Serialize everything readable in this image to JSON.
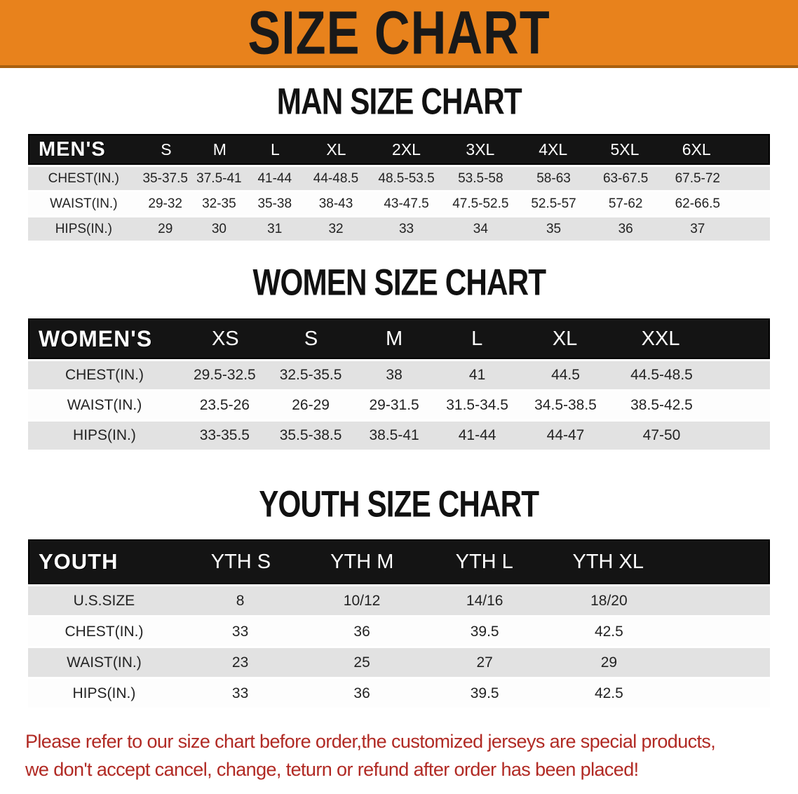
{
  "banner": {
    "title": "SIZE CHART"
  },
  "sections": [
    {
      "heading": "MAN SIZE CHART",
      "table": {
        "header_label": "MEN'S",
        "columns": [
          "S",
          "M",
          "L",
          "XL",
          "2XL",
          "3XL",
          "4XL",
          "5XL",
          "6XL"
        ],
        "rows": [
          {
            "label": "CHEST(IN.)",
            "values": [
              "35-37.5",
              "37.5-41",
              "41-44",
              "44-48.5",
              "48.5-53.5",
              "53.5-58",
              "58-63",
              "63-67.5",
              "67.5-72"
            ]
          },
          {
            "label": "WAIST(IN.)",
            "values": [
              "29-32",
              "32-35",
              "35-38",
              "38-43",
              "43-47.5",
              "47.5-52.5",
              "52.5-57",
              "57-62",
              "62-66.5"
            ]
          },
          {
            "label": "HIPS(IN.)",
            "values": [
              "29",
              "30",
              "31",
              "32",
              "33",
              "34",
              "35",
              "36",
              "37"
            ]
          }
        ]
      }
    },
    {
      "heading": "WOMEN SIZE CHART",
      "table": {
        "header_label": "WOMEN'S",
        "columns": [
          "XS",
          "S",
          "M",
          "L",
          "XL",
          "XXL"
        ],
        "rows": [
          {
            "label": "CHEST(IN.)",
            "values": [
              "29.5-32.5",
              "32.5-35.5",
              "38",
              "41",
              "44.5",
              "44.5-48.5"
            ]
          },
          {
            "label": "WAIST(IN.)",
            "values": [
              "23.5-26",
              "26-29",
              "29-31.5",
              "31.5-34.5",
              "34.5-38.5",
              "38.5-42.5"
            ]
          },
          {
            "label": "HIPS(IN.)",
            "values": [
              "33-35.5",
              "35.5-38.5",
              "38.5-41",
              "41-44",
              "44-47",
              "47-50"
            ]
          }
        ]
      }
    },
    {
      "heading": "YOUTH SIZE CHART",
      "table": {
        "header_label": "YOUTH",
        "columns": [
          "YTH S",
          "YTH M",
          "YTH L",
          "YTH XL"
        ],
        "rows": [
          {
            "label": "U.S.SIZE",
            "values": [
              "8",
              "10/12",
              "14/16",
              "18/20"
            ]
          },
          {
            "label": "CHEST(IN.)",
            "values": [
              "33",
              "36",
              "39.5",
              "42.5"
            ]
          },
          {
            "label": "WAIST(IN.)",
            "values": [
              "23",
              "25",
              "27",
              "29"
            ]
          },
          {
            "label": "HIPS(IN.)",
            "values": [
              "33",
              "36",
              "39.5",
              "42.5"
            ]
          }
        ]
      }
    }
  ],
  "disclaimer": {
    "line1": "Please refer to our size chart before order,the customized jerseys are special products,",
    "line2": "we don't accept cancel, change, teturn or refund after order has been placed!"
  },
  "colors": {
    "banner_bg": "#E8821C",
    "banner_border": "#A9600F",
    "header_band": "#141414",
    "row_gray": "#E2E2E2",
    "row_white": "#FDFDFD",
    "disclaimer_red": "#B12A24"
  }
}
